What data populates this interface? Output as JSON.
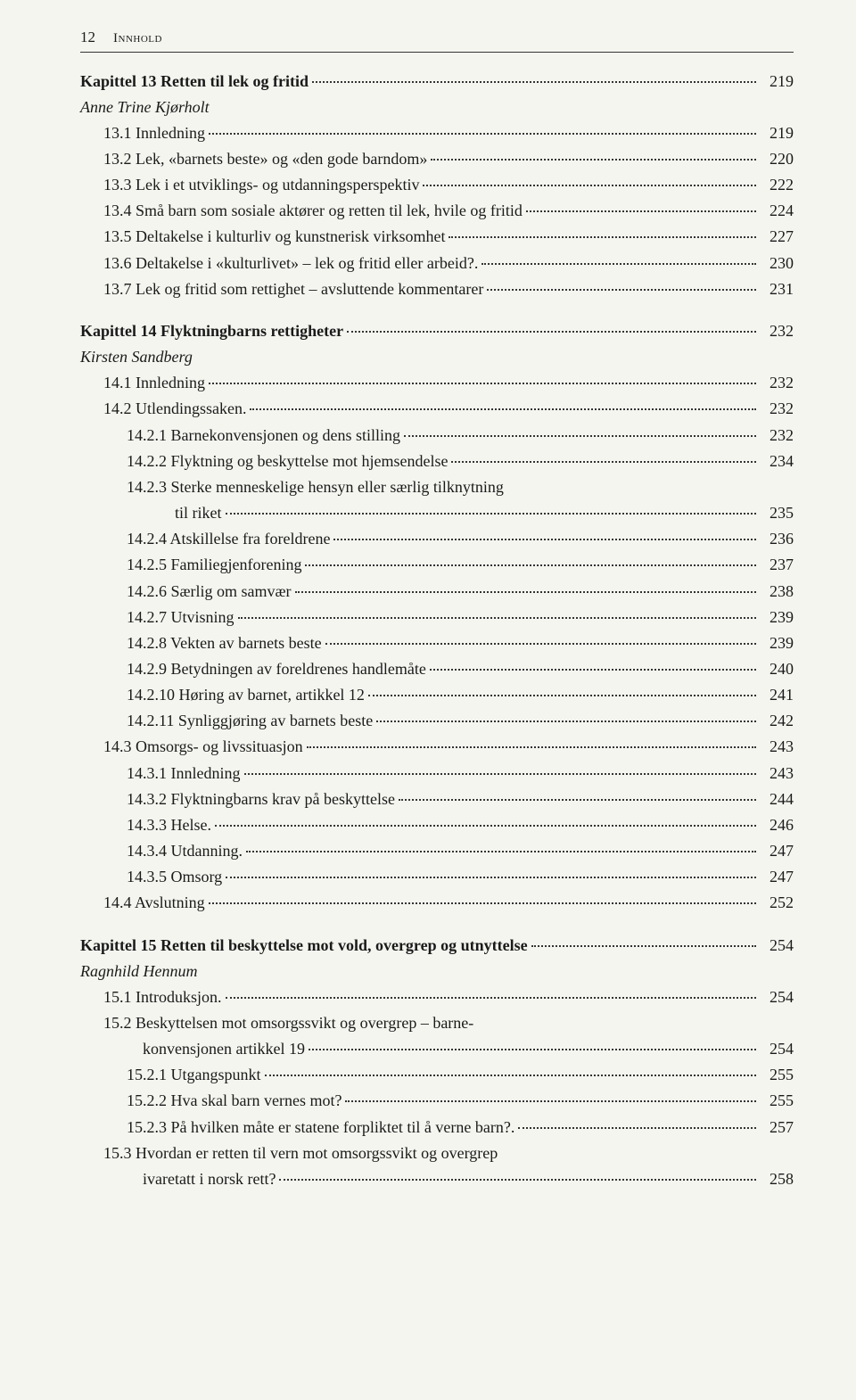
{
  "header": {
    "page_number": "12",
    "running_title": "Innhold"
  },
  "entries": [
    {
      "text": "Kapittel 13  Retten til lek og fritid",
      "page": "219",
      "bold": true,
      "indent": 0
    },
    {
      "text": "Anne Trine Kjørholt",
      "page": "",
      "italic": true,
      "indent": 0,
      "noPage": true
    },
    {
      "text": "13.1 Innledning",
      "page": "219",
      "indent": 1
    },
    {
      "text": "13.2 Lek, «barnets beste» og «den gode barndom»",
      "page": "220",
      "indent": 1
    },
    {
      "text": "13.3 Lek i et utviklings- og utdanningsperspektiv",
      "page": "222",
      "indent": 1
    },
    {
      "text": "13.4 Små barn som sosiale aktører og retten til lek, hvile og fritid",
      "page": "224",
      "indent": 1
    },
    {
      "text": "13.5 Deltakelse i kulturliv og kunstnerisk virksomhet",
      "page": "227",
      "indent": 1
    },
    {
      "text": "13.6 Deltakelse i «kulturlivet» – lek og fritid eller arbeid?.",
      "page": "230",
      "indent": 1
    },
    {
      "text": "13.7 Lek og fritid som rettighet – avsluttende kommentarer",
      "page": "231",
      "indent": 1
    },
    {
      "spacer": true
    },
    {
      "text": "Kapittel 14  Flyktningbarns rettigheter",
      "page": "232",
      "bold": true,
      "indent": 0
    },
    {
      "text": "Kirsten Sandberg",
      "page": "",
      "italic": true,
      "indent": 0,
      "noPage": true
    },
    {
      "text": "14.1 Innledning",
      "page": "232",
      "indent": 1
    },
    {
      "text": "14.2 Utlendingssaken.",
      "page": "232",
      "indent": 1
    },
    {
      "text": "14.2.1 Barnekonvensjonen og dens stilling",
      "page": "232",
      "indent": 2
    },
    {
      "text": "14.2.2 Flyktning og beskyttelse mot hjemsendelse",
      "page": "234",
      "indent": 2
    },
    {
      "text": "14.2.3 Sterke menneskelige hensyn eller særlig tilknytning",
      "page": "",
      "indent": 2,
      "noPage": true
    },
    {
      "text": "til riket",
      "page": "235",
      "indent": 3
    },
    {
      "text": "14.2.4 Atskillelse fra foreldrene",
      "page": "236",
      "indent": 2
    },
    {
      "text": "14.2.5 Familiegjenforening",
      "page": "237",
      "indent": 2
    },
    {
      "text": "14.2.6 Særlig om samvær",
      "page": "238",
      "indent": 2
    },
    {
      "text": "14.2.7 Utvisning",
      "page": "239",
      "indent": 2
    },
    {
      "text": "14.2.8 Vekten av barnets beste",
      "page": "239",
      "indent": 2
    },
    {
      "text": "14.2.9 Betydningen av foreldrenes handlemåte",
      "page": "240",
      "indent": 2
    },
    {
      "text": "14.2.10 Høring av barnet, artikkel 12",
      "page": "241",
      "indent": 2
    },
    {
      "text": "14.2.11 Synliggjøring av barnets beste",
      "page": "242",
      "indent": 2
    },
    {
      "text": "14.3 Omsorgs- og livssituasjon",
      "page": "243",
      "indent": 1
    },
    {
      "text": "14.3.1 Innledning",
      "page": "243",
      "indent": 2
    },
    {
      "text": "14.3.2 Flyktningbarns krav på beskyttelse",
      "page": "244",
      "indent": 2
    },
    {
      "text": "14.3.3 Helse.",
      "page": "246",
      "indent": 2
    },
    {
      "text": "14.3.4 Utdanning.",
      "page": "247",
      "indent": 2
    },
    {
      "text": "14.3.5 Omsorg",
      "page": "247",
      "indent": 2
    },
    {
      "text": "14.4 Avslutning",
      "page": "252",
      "indent": 1
    },
    {
      "spacer": true
    },
    {
      "text": "Kapittel 15  Retten til beskyttelse mot vold, overgrep og utnyttelse",
      "page": "254",
      "bold": true,
      "indent": 0
    },
    {
      "text": "Ragnhild Hennum",
      "page": "",
      "italic": true,
      "indent": 0,
      "noPage": true
    },
    {
      "text": "15.1 Introduksjon.",
      "page": "254",
      "indent": 1
    },
    {
      "text": "15.2 Beskyttelsen mot omsorgssvikt og overgrep – barne-",
      "page": "",
      "indent": 1,
      "noPage": true
    },
    {
      "text": "konvensjonen artikkel 19",
      "page": "254",
      "indent": "cont1"
    },
    {
      "text": "15.2.1 Utgangspunkt",
      "page": "255",
      "indent": 2
    },
    {
      "text": "15.2.2 Hva skal barn vernes mot?",
      "page": "255",
      "indent": 2
    },
    {
      "text": "15.2.3 På hvilken måte er statene forpliktet til å verne barn?.",
      "page": "257",
      "indent": 2
    },
    {
      "text": "15.3 Hvordan er retten til vern mot omsorgssvikt og overgrep",
      "page": "",
      "indent": 1,
      "noPage": true
    },
    {
      "text": "ivaretatt i norsk rett?",
      "page": "258",
      "indent": "cont1"
    }
  ]
}
